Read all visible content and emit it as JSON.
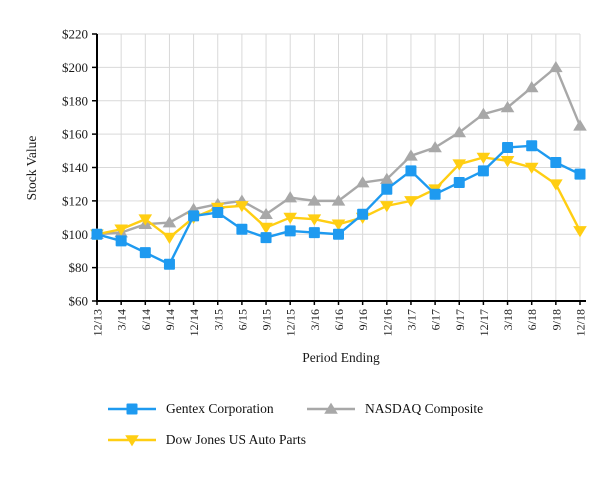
{
  "chart_data": {
    "type": "line",
    "title": "",
    "xlabel": "Period Ending",
    "ylabel": "Stock Value",
    "categories": [
      "12/13",
      "3/14",
      "6/14",
      "9/14",
      "12/14",
      "3/15",
      "6/15",
      "9/15",
      "12/15",
      "3/16",
      "6/16",
      "9/16",
      "12/16",
      "3/17",
      "6/17",
      "9/17",
      "12/17",
      "3/18",
      "6/18",
      "9/18",
      "12/18"
    ],
    "ylim": [
      60,
      220
    ],
    "y_tick_step": 20,
    "y_tick_labels": [
      "$60",
      "$80",
      "$100",
      "$120",
      "$140",
      "$160",
      "$180",
      "$200",
      "$220"
    ],
    "grid": true,
    "legend_position": "bottom-left",
    "series": [
      {
        "name": "Gentex Corporation",
        "marker": "square",
        "color": "#1E9AF0",
        "values": [
          100,
          96,
          89,
          82,
          111,
          113,
          103,
          98,
          102,
          101,
          100,
          112,
          127,
          138,
          124,
          131,
          138,
          152,
          153,
          143,
          136
        ]
      },
      {
        "name": "NASDAQ Composite",
        "marker": "triangle-up",
        "color": "#A8A8A8",
        "values": [
          100,
          101,
          106,
          107,
          115,
          118,
          120,
          112,
          122,
          120,
          120,
          131,
          133,
          147,
          152,
          161,
          172,
          176,
          188,
          200,
          165
        ]
      },
      {
        "name": "Dow Jones US Auto Parts",
        "marker": "triangle-down",
        "color": "#FFCE12",
        "values": [
          100,
          103,
          109,
          98,
          110,
          116,
          117,
          104,
          110,
          109,
          106,
          110,
          117,
          120,
          127,
          142,
          146,
          144,
          140,
          130,
          102
        ]
      }
    ]
  },
  "colors": {
    "axis": "#000000",
    "grid": "#D9D9D9",
    "text": "#1A1A1A",
    "background": "#FFFFFF"
  }
}
